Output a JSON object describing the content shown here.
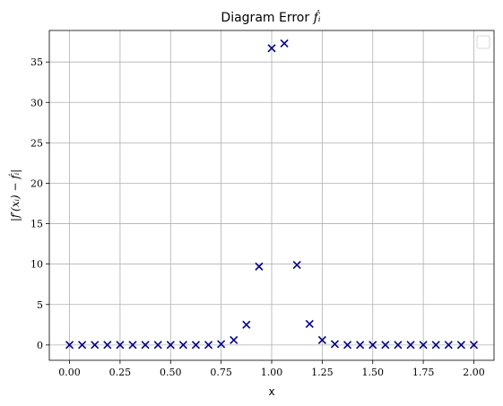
{
  "chart_data": {
    "type": "scatter",
    "title_prefix": "Diagram Error",
    "title_math": "ḟᵢ",
    "xlabel": "x",
    "ylabel": "|f′(xᵢ) − ḟᵢ|",
    "xlim": [
      -0.1,
      2.1
    ],
    "ylim": [
      -1.9,
      38.9
    ],
    "xticks": [
      0.0,
      0.25,
      0.5,
      0.75,
      1.0,
      1.25,
      1.5,
      1.75,
      2.0
    ],
    "xtick_labels": [
      "0.00",
      "0.25",
      "0.50",
      "0.75",
      "1.00",
      "1.25",
      "1.50",
      "1.75",
      "2.00"
    ],
    "yticks": [
      0,
      5,
      10,
      15,
      20,
      25,
      30,
      35
    ],
    "ytick_labels": [
      "0",
      "5",
      "10",
      "15",
      "20",
      "25",
      "30",
      "35"
    ],
    "grid": true,
    "legend": "top-right (empty)",
    "marker": "x",
    "color": "#00008b",
    "x": [
      0.0,
      0.0625,
      0.125,
      0.1875,
      0.25,
      0.3125,
      0.375,
      0.4375,
      0.5,
      0.5625,
      0.625,
      0.6875,
      0.75,
      0.8125,
      0.875,
      0.9375,
      1.0,
      1.0625,
      1.125,
      1.1875,
      1.25,
      1.3125,
      1.375,
      1.4375,
      1.5,
      1.5625,
      1.625,
      1.6875,
      1.75,
      1.8125,
      1.875,
      1.9375,
      2.0
    ],
    "y": [
      0.0,
      0.0,
      0.0,
      0.0,
      0.0,
      0.0,
      0.0,
      0.0,
      0.0,
      0.0,
      0.0,
      0.0,
      0.1,
      0.6,
      2.5,
      9.7,
      36.7,
      37.3,
      9.9,
      2.6,
      0.6,
      0.1,
      0.0,
      0.0,
      0.0,
      0.0,
      0.0,
      0.0,
      0.0,
      0.0,
      0.0,
      0.0,
      0.0
    ]
  }
}
